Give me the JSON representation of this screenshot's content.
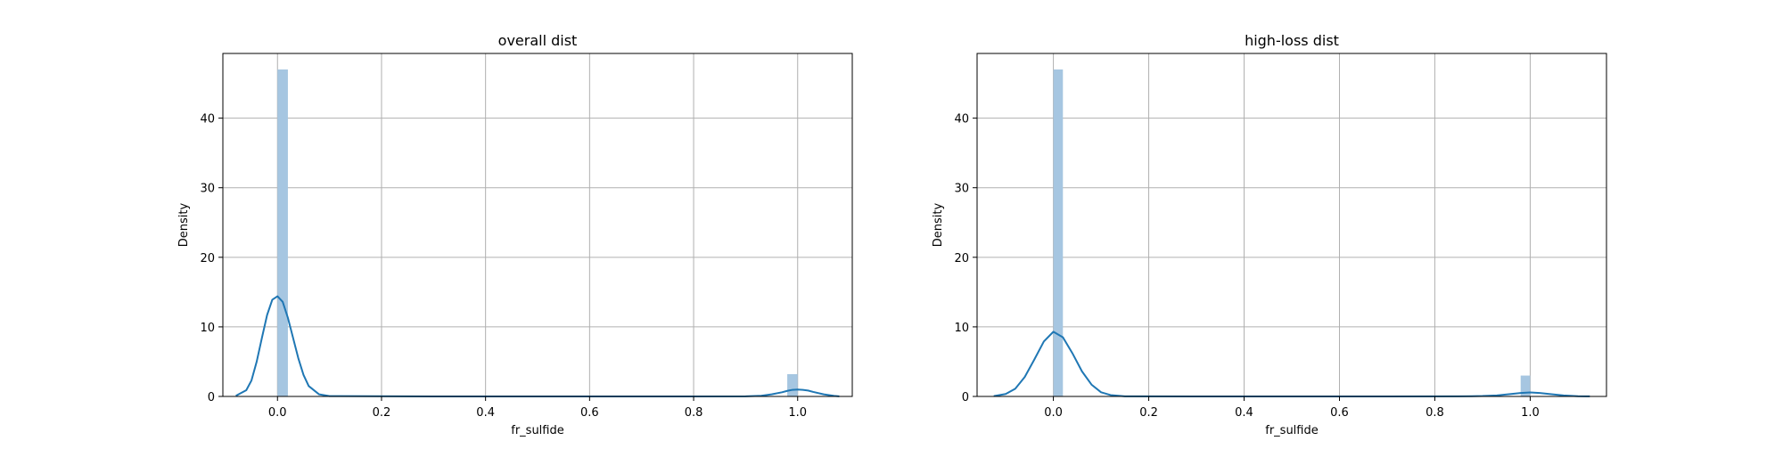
{
  "chart_data": [
    {
      "type": "histogram+kde",
      "title": "overall dist",
      "xlabel": "fr_sulfide",
      "ylabel": "Density",
      "xlim": [
        -0.105,
        1.105
      ],
      "ylim": [
        0,
        49.3
      ],
      "xticks": [
        0.0,
        0.2,
        0.4,
        0.6,
        0.8,
        1.0
      ],
      "xtick_labels": [
        "0.0",
        "0.2",
        "0.4",
        "0.6",
        "0.8",
        "1.0"
      ],
      "yticks": [
        0,
        10,
        20,
        30,
        40
      ],
      "ytick_labels": [
        "0",
        "10",
        "20",
        "30",
        "40"
      ],
      "grid": true,
      "bar_color": "#a6c6e1",
      "line_color": "#1f77b4",
      "histogram": {
        "bin_width": 0.02,
        "bins": [
          {
            "x_start": 0.0,
            "height": 47.0
          },
          {
            "x_start": 0.98,
            "height": 3.2
          }
        ]
      },
      "kde": {
        "x": [
          -0.08,
          -0.06,
          -0.05,
          -0.04,
          -0.03,
          -0.02,
          -0.01,
          0.0,
          0.01,
          0.02,
          0.03,
          0.04,
          0.05,
          0.06,
          0.08,
          0.1,
          0.3,
          0.5,
          0.7,
          0.9,
          0.93,
          0.95,
          0.97,
          0.98,
          0.99,
          1.0,
          1.01,
          1.02,
          1.03,
          1.05,
          1.07,
          1.08
        ],
        "y": [
          0.1,
          0.9,
          2.3,
          5.0,
          8.4,
          11.7,
          13.9,
          14.4,
          13.6,
          11.3,
          8.4,
          5.5,
          3.1,
          1.5,
          0.3,
          0.05,
          0.0,
          0.0,
          0.0,
          0.02,
          0.1,
          0.3,
          0.6,
          0.8,
          0.95,
          1.0,
          0.95,
          0.85,
          0.65,
          0.3,
          0.08,
          0.02
        ]
      }
    },
    {
      "type": "histogram+kde",
      "title": "high-loss dist",
      "xlabel": "fr_sulfide",
      "ylabel": "Density",
      "xlim": [
        -0.16,
        1.16
      ],
      "ylim": [
        0,
        49.3
      ],
      "xticks": [
        0.0,
        0.2,
        0.4,
        0.6,
        0.8,
        1.0
      ],
      "xtick_labels": [
        "0.0",
        "0.2",
        "0.4",
        "0.6",
        "0.8",
        "1.0"
      ],
      "yticks": [
        0,
        10,
        20,
        30,
        40
      ],
      "ytick_labels": [
        "0",
        "10",
        "20",
        "30",
        "40"
      ],
      "grid": true,
      "bar_color": "#a6c6e1",
      "line_color": "#1f77b4",
      "histogram": {
        "bin_width": 0.02,
        "bins": [
          {
            "x_start": 0.0,
            "height": 47.0
          },
          {
            "x_start": 0.98,
            "height": 3.0
          }
        ]
      },
      "kde": {
        "x": [
          -0.125,
          -0.1,
          -0.08,
          -0.06,
          -0.04,
          -0.02,
          0.0,
          0.02,
          0.04,
          0.06,
          0.08,
          0.1,
          0.12,
          0.15,
          0.3,
          0.5,
          0.7,
          0.85,
          0.9,
          0.93,
          0.96,
          0.98,
          1.0,
          1.02,
          1.04,
          1.07,
          1.1,
          1.125
        ],
        "y": [
          0.05,
          0.35,
          1.1,
          2.8,
          5.3,
          7.9,
          9.3,
          8.5,
          6.2,
          3.6,
          1.7,
          0.6,
          0.2,
          0.02,
          0.0,
          0.0,
          0.0,
          0.01,
          0.06,
          0.15,
          0.35,
          0.5,
          0.58,
          0.5,
          0.35,
          0.15,
          0.04,
          0.01
        ]
      }
    }
  ]
}
